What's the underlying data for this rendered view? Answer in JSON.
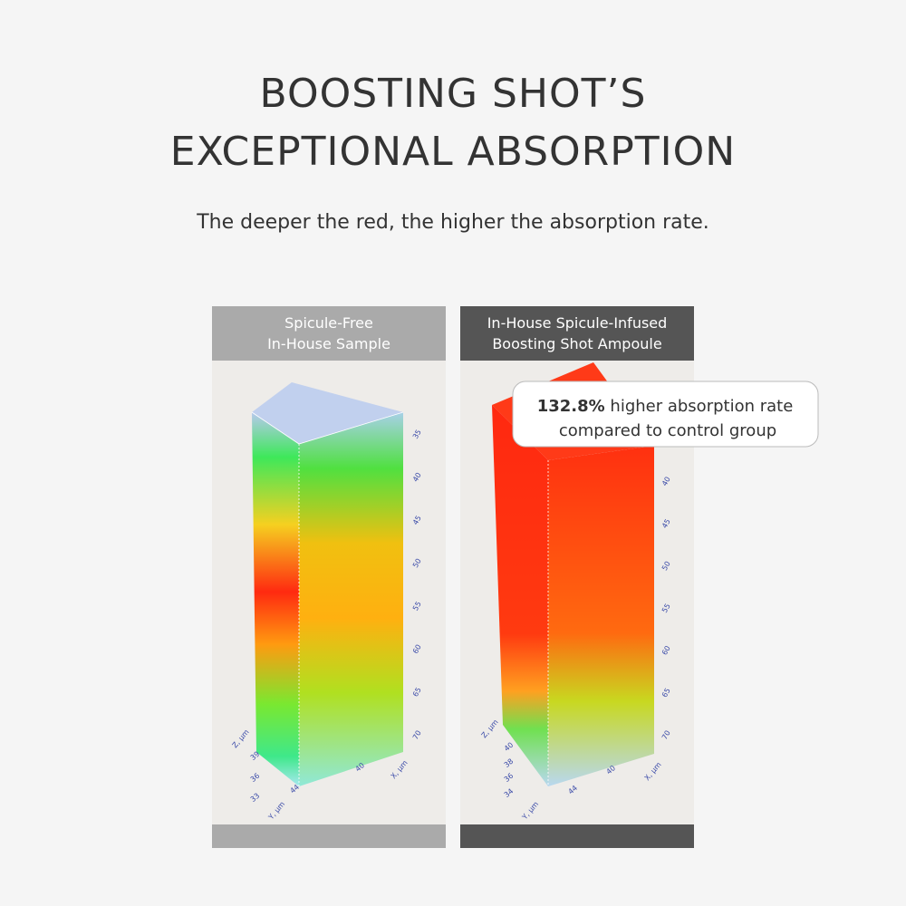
{
  "header": {
    "title_lines": [
      "BOOSTING SHOT’S",
      "EXCEPTIONAL ABSORPTION"
    ],
    "subtitle": "The deeper the red, the higher the absorption rate."
  },
  "panels": [
    {
      "label_lines": [
        "Spicule-Free",
        "In-House Sample"
      ],
      "y_axis_ticks": [
        "35",
        "40",
        "45",
        "50",
        "55",
        "60",
        "65",
        "70"
      ],
      "x_axis_ticks": [
        "40",
        "44"
      ],
      "z_axis_ticks": [
        "39",
        "36",
        "33"
      ],
      "axis_labels": {
        "z": "Z, μm",
        "x": "X, μm",
        "y": "Y, μm"
      }
    },
    {
      "label_lines": [
        "In-House Spicule-Infused",
        "Boosting Shot Ampoule"
      ],
      "y_axis_ticks": [
        "40",
        "45",
        "50",
        "55",
        "60",
        "65",
        "70"
      ],
      "x_axis_ticks": [
        "40",
        "44"
      ],
      "z_axis_ticks": [
        "40",
        "38",
        "36",
        "34"
      ],
      "axis_labels": {
        "z": "Z, μm",
        "x": "X, μm",
        "y": "Y, μm"
      }
    }
  ],
  "callout": {
    "value": "132.8%",
    "lines": [
      "higher absorption rate",
      "compared to control group"
    ]
  }
}
